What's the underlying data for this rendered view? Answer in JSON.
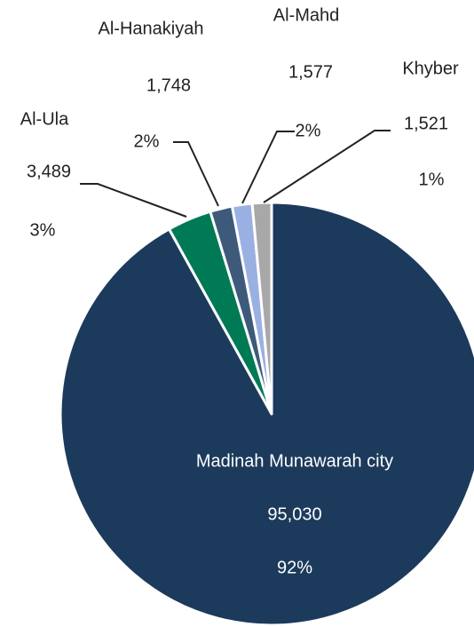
{
  "chart_data": {
    "type": "pie",
    "categories": [
      "Madinah Munawarah city",
      "Al-Ula",
      "Al-Hanakiyah",
      "Al-Mahd",
      "Khyber"
    ],
    "values": [
      95030,
      3489,
      1748,
      1577,
      1521
    ],
    "value_labels": [
      "95,030",
      "3,489",
      "1,748",
      "1,577",
      "1,521"
    ],
    "percentage_labels": [
      "92%",
      "3%",
      "2%",
      "2%",
      "1%"
    ],
    "colors": [
      "#1c3a5c",
      "#007a55",
      "#3e5a7b",
      "#9bb0e2",
      "#a8a8a8"
    ]
  }
}
